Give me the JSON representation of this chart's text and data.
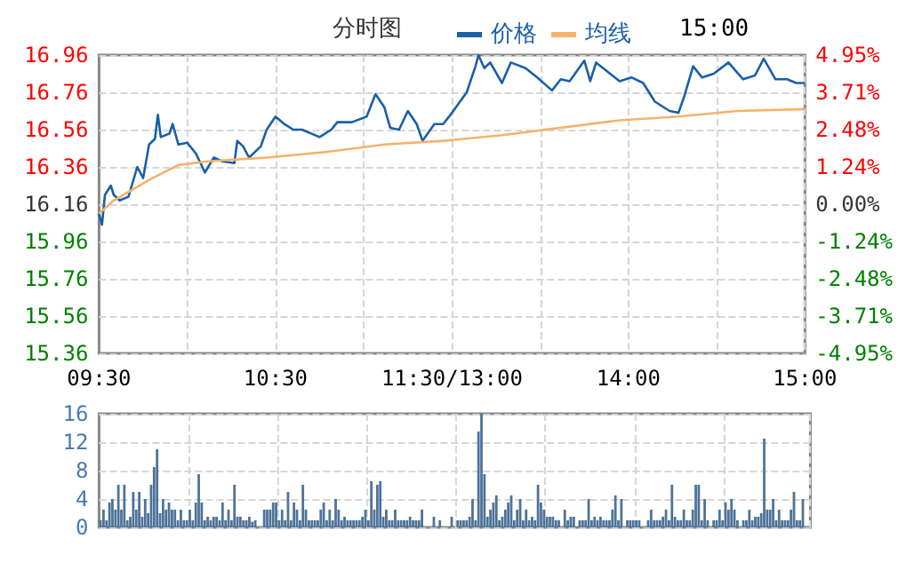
{
  "chart_data": [
    {
      "type": "line",
      "title": "分时图",
      "annotations": [
        "15:00"
      ],
      "legend": "top",
      "grid": true,
      "marker": "none",
      "categories": [
        "09:30",
        null,
        null,
        null,
        null,
        null,
        null,
        null,
        null,
        null,
        null,
        null,
        null,
        null,
        null,
        null,
        null,
        null,
        null,
        null,
        null,
        null,
        null,
        null,
        null,
        null,
        null,
        null,
        null,
        null,
        null,
        null,
        null,
        null,
        null,
        null,
        null,
        null,
        null,
        null,
        null,
        null,
        null,
        null,
        null,
        null,
        null,
        null,
        null,
        null,
        null,
        null,
        null,
        null,
        null,
        null,
        null,
        null,
        null,
        null,
        "10:30",
        null,
        null,
        null,
        null,
        null,
        null,
        null,
        null,
        null,
        null,
        null,
        null,
        null,
        null,
        null,
        null,
        null,
        null,
        null,
        null,
        null,
        null,
        null,
        null,
        null,
        null,
        null,
        null,
        null,
        null,
        null,
        null,
        null,
        null,
        null,
        null,
        null,
        null,
        null,
        null,
        null,
        null,
        null,
        null,
        null,
        null,
        null,
        null,
        null,
        null,
        null,
        null,
        null,
        null,
        null,
        null,
        null,
        null,
        null,
        "11:30/13:00",
        null,
        null,
        null,
        null,
        null,
        null,
        null,
        null,
        null,
        null,
        null,
        null,
        null,
        null,
        null,
        null,
        null,
        null,
        null,
        null,
        null,
        null,
        null,
        null,
        null,
        null,
        null,
        null,
        null,
        null,
        null,
        null,
        null,
        null,
        null,
        null,
        null,
        null,
        null,
        null,
        null,
        null,
        null,
        null,
        null,
        null,
        null,
        null,
        null,
        null,
        null,
        null,
        null,
        null,
        null,
        null,
        null,
        null,
        null,
        "14:00",
        null,
        null,
        null,
        null,
        null,
        null,
        null,
        null,
        null,
        null,
        null,
        null,
        null,
        null,
        null,
        null,
        null,
        null,
        null,
        null,
        null,
        null,
        null,
        null,
        null,
        null,
        null,
        null,
        null,
        null,
        null,
        null,
        null,
        null,
        null,
        null,
        null,
        null,
        null,
        null,
        null,
        null,
        null,
        null,
        null,
        null,
        null,
        null,
        null,
        null,
        null,
        null,
        null,
        null,
        null,
        null,
        null,
        null,
        null,
        "15:00"
      ],
      "ylim": [
        15.36,
        16.96
      ],
      "yticks": [
        15.36,
        15.56,
        15.76,
        15.96,
        16.16,
        16.36,
        16.56,
        16.76,
        16.96
      ],
      "y2lim": [
        -4.95,
        4.95
      ],
      "y2ticks": [
        {
          "value": -4.95,
          "label": "-4.95%"
        },
        {
          "value": -3.71,
          "label": "-3.71%"
        },
        {
          "value": -2.48,
          "label": "-2.48%"
        },
        {
          "value": -1.24,
          "label": "-1.24%"
        },
        {
          "value": 0,
          "label": "0.00%"
        },
        {
          "value": 1.24,
          "label": "1.24%"
        },
        {
          "value": 2.48,
          "label": "2.48%"
        },
        {
          "value": 3.71,
          "label": "3.71%"
        },
        {
          "value": 4.95,
          "label": "4.95%"
        }
      ],
      "series": [
        {
          "name": "价格",
          "color": "#1a5fa8",
          "values": [
            16.11,
            16.05,
            16.21,
            null,
            16.26,
            16.21,
            null,
            16.18,
            null,
            null,
            16.2,
            null,
            null,
            16.36,
            null,
            16.3,
            null,
            16.48,
            null,
            16.51,
            16.64,
            16.52,
            null,
            null,
            16.54,
            16.59,
            null,
            16.48,
            null,
            null,
            16.49,
            null,
            null,
            16.43,
            null,
            null,
            16.33,
            null,
            null,
            16.41,
            null,
            null,
            16.39,
            null,
            null,
            null,
            16.38,
            16.5,
            null,
            16.47,
            null,
            16.41,
            null,
            null,
            null,
            16.47,
            null,
            16.56,
            null,
            null,
            16.63,
            null,
            null,
            16.59,
            null,
            null,
            16.56,
            null,
            null,
            16.56,
            null,
            null,
            null,
            null,
            null,
            16.52,
            null,
            null,
            null,
            16.56,
            null,
            16.6,
            null,
            null,
            null,
            null,
            16.6,
            null,
            null,
            null,
            null,
            16.63,
            null,
            null,
            16.75,
            null,
            null,
            16.68,
            null,
            16.57,
            null,
            null,
            16.56,
            null,
            null,
            16.66,
            null,
            null,
            16.59,
            null,
            16.5,
            null,
            null,
            null,
            16.59,
            null,
            null,
            16.59,
            null,
            null,
            16.65,
            null,
            null,
            null,
            null,
            16.76,
            null,
            null,
            16.9,
            16.96,
            null,
            16.89,
            null,
            16.92,
            null,
            null,
            null,
            16.81,
            null,
            null,
            16.92,
            null,
            null,
            null,
            null,
            16.89,
            null,
            null,
            null,
            16.84,
            null,
            null,
            null,
            null,
            16.77,
            null,
            null,
            16.83,
            null,
            null,
            16.82,
            null,
            null,
            null,
            null,
            16.93,
            null,
            16.82,
            null,
            16.92,
            null,
            null,
            null,
            16.87,
            null,
            null,
            null,
            16.82,
            null,
            null,
            null,
            16.84,
            null,
            null,
            null,
            16.81,
            null,
            null,
            null,
            16.71,
            null,
            null,
            null,
            null,
            16.66,
            null,
            null,
            16.65,
            null,
            16.74,
            null,
            null,
            16.9,
            null,
            null,
            16.84,
            null,
            null,
            null,
            16.86,
            null,
            null,
            null,
            null,
            16.92,
            null,
            null,
            null,
            null,
            16.83,
            null,
            null,
            null,
            16.85,
            null,
            null,
            16.94,
            null,
            null,
            null,
            16.83,
            null,
            null,
            null,
            16.83,
            null,
            null,
            16.81,
            null,
            null,
            16.81
          ]
        },
        {
          "name": "均线",
          "color": "#f5b26b",
          "values": [
            16.11,
            null,
            null,
            null,
            null,
            16.18,
            null,
            null,
            null,
            null,
            null,
            null,
            null,
            null,
            null,
            null,
            null,
            16.29,
            null,
            null,
            null,
            null,
            null,
            null,
            null,
            null,
            null,
            16.37,
            null,
            null,
            null,
            null,
            null,
            null,
            null,
            null,
            null,
            16.39,
            null,
            null,
            null,
            null,
            null,
            null,
            null,
            null,
            null,
            null,
            null,
            null,
            null,
            null,
            null,
            null,
            null,
            null,
            null,
            16.41,
            null,
            null,
            null,
            null,
            null,
            null,
            null,
            null,
            null,
            null,
            null,
            null,
            null,
            null,
            null,
            null,
            null,
            null,
            null,
            16.44,
            null,
            null,
            null,
            null,
            null,
            null,
            null,
            null,
            null,
            null,
            null,
            null,
            null,
            null,
            null,
            null,
            null,
            null,
            null,
            16.48,
            null,
            null,
            null,
            null,
            null,
            null,
            null,
            null,
            null,
            null,
            null,
            null,
            null,
            null,
            null,
            null,
            null,
            null,
            null,
            16.5,
            null,
            null,
            null,
            null,
            null,
            null,
            null,
            null,
            null,
            null,
            null,
            null,
            null,
            null,
            null,
            null,
            null,
            null,
            null,
            16.53,
            null,
            null,
            null,
            null,
            null,
            null,
            null,
            null,
            null,
            null,
            null,
            null,
            null,
            null,
            null,
            null,
            null,
            null,
            null,
            16.57,
            null,
            null,
            null,
            null,
            null,
            null,
            null,
            null,
            null,
            null,
            null,
            null,
            null,
            null,
            null,
            null,
            null,
            null,
            null,
            16.61,
            null,
            null,
            null,
            null,
            null,
            null,
            null,
            null,
            null,
            null,
            null,
            null,
            null,
            null,
            null,
            null,
            null,
            null,
            null,
            16.63,
            null,
            null,
            null,
            null,
            null,
            null,
            null,
            null,
            null,
            null,
            null,
            null,
            null,
            null,
            null,
            null,
            null,
            null,
            null,
            16.66,
            null,
            null,
            null,
            null,
            null,
            null,
            null,
            null,
            null,
            null,
            null,
            null,
            null,
            null,
            null,
            null,
            null,
            null,
            null,
            null,
            null,
            null,
            16.67
          ]
        }
      ]
    },
    {
      "type": "bar",
      "grid": true,
      "tick_labels": "y",
      "color": "#4e7399",
      "ylim": [
        0,
        16
      ],
      "yticks": [
        0,
        4,
        8,
        12,
        16
      ],
      "categories": [
        null,
        null,
        null,
        null,
        null,
        null,
        null,
        null,
        null,
        null,
        null,
        null,
        null,
        null,
        null,
        null,
        null,
        null,
        null,
        null,
        null,
        null,
        null,
        null,
        null,
        null,
        null,
        null,
        null,
        null,
        null,
        null,
        null,
        null,
        null,
        null,
        null,
        null,
        null,
        null,
        null,
        null,
        null,
        null,
        null,
        null,
        null,
        null,
        null,
        null,
        null,
        null,
        null,
        null,
        null,
        null,
        null,
        null,
        null,
        null,
        null,
        null,
        null,
        null,
        null,
        null,
        null,
        null,
        null,
        null,
        null,
        null,
        null,
        null,
        null,
        null,
        null,
        null,
        null,
        null,
        null,
        null,
        null,
        null,
        null,
        null,
        null,
        null,
        null,
        null,
        null,
        null,
        null,
        null,
        null,
        null,
        null,
        null,
        null,
        null,
        null,
        null,
        null,
        null,
        null,
        null,
        null,
        null,
        null,
        null,
        null,
        null,
        null,
        null,
        null,
        null,
        null,
        null,
        null,
        null,
        null,
        null,
        null,
        null,
        null,
        null,
        null,
        null,
        null,
        null,
        null,
        null,
        null,
        null,
        null,
        null,
        null,
        null,
        null,
        null,
        null,
        null,
        null,
        null,
        null,
        null,
        null,
        null,
        null,
        null,
        null,
        null,
        null,
        null,
        null,
        null,
        null,
        null,
        null,
        null,
        null,
        null,
        null,
        null,
        null,
        null,
        null,
        null,
        null,
        null,
        null,
        null,
        null,
        null,
        null,
        null,
        null,
        null,
        null,
        null,
        null,
        null,
        null,
        null,
        null,
        null,
        null,
        null,
        null,
        null,
        null,
        null,
        null,
        null,
        null,
        null,
        null,
        null,
        null,
        null,
        null,
        null,
        null,
        null,
        null,
        null,
        null,
        null,
        null,
        null,
        null,
        null,
        null,
        null,
        null,
        null,
        null,
        null,
        null,
        null,
        null,
        null,
        null,
        null,
        null,
        null,
        null,
        null,
        null,
        null,
        null,
        null,
        null,
        null,
        null,
        null,
        null,
        null,
        null
      ],
      "values": [
        1,
        2.5,
        1,
        3.5,
        4,
        2.5,
        6,
        2.5,
        6,
        1,
        1.5,
        5,
        2.5,
        5,
        1.5,
        4,
        2,
        6,
        8.5,
        11,
        2,
        4,
        2.5,
        3.5,
        2.5,
        2.5,
        1,
        2.5,
        1,
        1,
        2.5,
        1,
        3.5,
        7.5,
        3.5,
        1,
        1.5,
        1,
        1.5,
        1.5,
        1,
        3.5,
        1,
        2.5,
        1,
        6,
        1.5,
        1.5,
        1,
        1,
        1.5,
        0.8,
        1,
        0,
        0,
        2.5,
        2.5,
        2.5,
        3.5,
        3.5,
        1,
        2.5,
        1,
        5,
        1,
        3.5,
        2.5,
        1,
        6,
        2.5,
        1,
        1,
        1,
        1,
        2.5,
        3.5,
        1,
        2.5,
        1,
        4,
        2.5,
        1,
        1.5,
        1,
        1,
        1,
        1,
        1,
        1.5,
        2.5,
        1,
        6.5,
        2.5,
        6,
        6.5,
        1.5,
        2.5,
        1,
        1,
        2.5,
        1,
        1,
        1,
        1,
        1.5,
        1,
        1,
        1,
        2.5,
        0,
        0,
        0,
        1.5,
        0,
        1,
        0,
        0,
        0,
        1.5,
        0,
        1,
        1,
        1,
        1,
        1.5,
        4,
        1,
        13.5,
        16,
        7.5,
        1.5,
        2.5,
        3.5,
        4.5,
        1,
        1.5,
        2.5,
        3.5,
        4.5,
        1,
        2.5,
        4,
        1,
        2.5,
        1,
        1.5,
        1,
        6,
        3.5,
        2.5,
        1.5,
        1.5,
        1.5,
        1,
        1,
        0,
        2.5,
        1,
        1.5,
        1.5,
        0,
        1,
        1,
        1,
        4,
        1,
        1.5,
        1,
        1.5,
        1,
        1,
        1,
        2.5,
        4.5,
        1,
        4,
        0,
        1,
        1,
        1,
        1,
        1,
        0,
        0,
        1,
        2.5,
        1,
        1,
        1,
        1.5,
        2.5,
        1,
        6,
        1.5,
        1,
        1,
        2.5,
        1,
        1,
        2.5,
        6,
        6,
        1,
        4,
        1,
        0,
        1,
        1,
        2.5,
        1,
        3.5,
        2.5,
        4,
        2.5,
        1,
        0,
        1,
        1,
        2.5,
        1,
        1.5,
        1.5,
        2,
        12.5,
        2.5,
        2.5,
        4,
        1,
        2.5,
        1,
        1,
        1,
        2.5,
        5,
        1,
        1,
        4,
        0,
        0
      ]
    }
  ]
}
